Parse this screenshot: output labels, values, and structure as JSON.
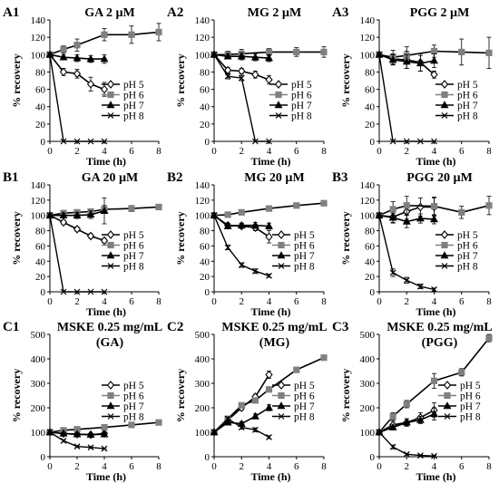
{
  "figure": {
    "legend_labels": [
      "pH 5",
      "pH 6",
      "pH 7",
      "pH 8"
    ],
    "series_style": [
      {
        "marker": "diamond-open",
        "color": "#000000"
      },
      {
        "marker": "square",
        "color": "#808080"
      },
      {
        "marker": "triangle",
        "color": "#000000"
      },
      {
        "marker": "x",
        "color": "#000000"
      }
    ]
  },
  "chart_data": [
    {
      "panel_id": "A1",
      "title": "GA 2 µM",
      "type": "line",
      "xlabel": "Time (h)",
      "ylabel": "% recovery",
      "xlim": [
        0,
        8
      ],
      "xticks": [
        0,
        2,
        4,
        6,
        8
      ],
      "ylim": [
        0,
        140
      ],
      "yticks": [
        0,
        20,
        40,
        60,
        80,
        100,
        120,
        140
      ],
      "legend": "right",
      "series": [
        {
          "name": "pH 5",
          "x": [
            0,
            1,
            2,
            3,
            4
          ],
          "y": [
            100,
            80,
            78,
            66,
            60
          ],
          "err": [
            0,
            4,
            5,
            8,
            8
          ]
        },
        {
          "name": "pH 6",
          "x": [
            0,
            1,
            2,
            4,
            6,
            8
          ],
          "y": [
            100,
            106,
            111,
            123,
            123,
            126
          ],
          "err": [
            0,
            4,
            7,
            7,
            10,
            10
          ]
        },
        {
          "name": "pH 7",
          "x": [
            0,
            1,
            2,
            3,
            4
          ],
          "y": [
            100,
            97,
            96,
            95,
            95
          ],
          "err": [
            0,
            3,
            4,
            4,
            5
          ]
        },
        {
          "name": "pH 8",
          "x": [
            0,
            1,
            2,
            3,
            4
          ],
          "y": [
            100,
            0,
            0,
            0,
            0
          ],
          "err": [
            0,
            0,
            0,
            0,
            0
          ]
        }
      ]
    },
    {
      "panel_id": "A2",
      "title": "MG 2 µM",
      "type": "line",
      "xlabel": "Time (h)",
      "ylabel": "% recovery",
      "xlim": [
        0,
        8
      ],
      "xticks": [
        0,
        2,
        4,
        6,
        8
      ],
      "ylim": [
        0,
        140
      ],
      "yticks": [
        0,
        20,
        40,
        60,
        80,
        100,
        120,
        140
      ],
      "legend": "right",
      "series": [
        {
          "name": "pH 5",
          "x": [
            0,
            1,
            2,
            3,
            4
          ],
          "y": [
            100,
            82,
            81,
            77,
            71
          ],
          "err": [
            0,
            3,
            3,
            4,
            5
          ]
        },
        {
          "name": "pH 6",
          "x": [
            0,
            1,
            2,
            4,
            6,
            8
          ],
          "y": [
            100,
            100,
            101,
            103,
            103,
            103
          ],
          "err": [
            0,
            4,
            5,
            4,
            5,
            6
          ]
        },
        {
          "name": "pH 7",
          "x": [
            0,
            1,
            2,
            3,
            4
          ],
          "y": [
            100,
            98,
            98,
            97,
            96
          ],
          "err": [
            0,
            3,
            4,
            4,
            4
          ]
        },
        {
          "name": "pH 8",
          "x": [
            0,
            1,
            2,
            3,
            4
          ],
          "y": [
            100,
            75,
            73,
            0,
            0
          ],
          "err": [
            0,
            3,
            3,
            0,
            0
          ]
        }
      ]
    },
    {
      "panel_id": "A3",
      "title": "PGG 2 µM",
      "type": "line",
      "xlabel": "Time (h)",
      "ylabel": "% recovery",
      "xlim": [
        0,
        8
      ],
      "xticks": [
        0,
        2,
        4,
        6,
        8
      ],
      "ylim": [
        0,
        140
      ],
      "yticks": [
        0,
        20,
        40,
        60,
        80,
        100,
        120,
        140
      ],
      "legend": "right",
      "series": [
        {
          "name": "pH 5",
          "x": [
            0,
            1,
            2,
            3,
            4
          ],
          "y": [
            100,
            95,
            94,
            91,
            77
          ],
          "err": [
            0,
            6,
            10,
            10,
            4
          ]
        },
        {
          "name": "pH 6",
          "x": [
            0,
            1,
            2,
            4,
            6,
            8
          ],
          "y": [
            100,
            97,
            99,
            104,
            103,
            102
          ],
          "err": [
            0,
            8,
            10,
            7,
            15,
            18
          ]
        },
        {
          "name": "pH 7",
          "x": [
            0,
            1,
            2,
            3,
            4
          ],
          "y": [
            100,
            94,
            92,
            90,
            93
          ],
          "err": [
            0,
            6,
            8,
            9,
            8
          ]
        },
        {
          "name": "pH 8",
          "x": [
            0,
            1,
            2,
            3,
            4
          ],
          "y": [
            100,
            0,
            0,
            0,
            0
          ],
          "err": [
            0,
            0,
            0,
            0,
            0
          ]
        }
      ]
    },
    {
      "panel_id": "B1",
      "title": "GA 20 µM",
      "type": "line",
      "xlabel": "Time (h)",
      "ylabel": "% recovery",
      "xlim": [
        0,
        8
      ],
      "xticks": [
        0,
        2,
        4,
        6,
        8
      ],
      "ylim": [
        0,
        140
      ],
      "yticks": [
        0,
        20,
        40,
        60,
        80,
        100,
        120,
        140
      ],
      "legend": "right",
      "series": [
        {
          "name": "pH 5",
          "x": [
            0,
            1,
            2,
            3,
            4
          ],
          "y": [
            100,
            91,
            82,
            73,
            67
          ],
          "err": [
            0,
            3,
            3,
            3,
            3
          ]
        },
        {
          "name": "pH 6",
          "x": [
            0,
            1,
            2,
            3,
            4,
            6,
            8
          ],
          "y": [
            100,
            103,
            104,
            105,
            108,
            109,
            111
          ],
          "err": [
            0,
            3,
            3,
            3,
            5,
            4,
            3
          ]
        },
        {
          "name": "pH 7",
          "x": [
            0,
            1,
            2,
            3,
            4
          ],
          "y": [
            100,
            100,
            100,
            101,
            106
          ],
          "err": [
            0,
            3,
            4,
            5,
            17
          ]
        },
        {
          "name": "pH 8",
          "x": [
            0,
            1,
            2,
            3,
            4
          ],
          "y": [
            100,
            0,
            0,
            0,
            0
          ],
          "err": [
            0,
            0,
            0,
            0,
            0
          ]
        }
      ]
    },
    {
      "panel_id": "B2",
      "title": "MG 20 µM",
      "type": "line",
      "xlabel": "Time (h)",
      "ylabel": "% recovery",
      "xlim": [
        0,
        8
      ],
      "xticks": [
        0,
        2,
        4,
        6,
        8
      ],
      "ylim": [
        0,
        140
      ],
      "yticks": [
        0,
        20,
        40,
        60,
        80,
        100,
        120,
        140
      ],
      "legend": "right",
      "series": [
        {
          "name": "pH 5",
          "x": [
            0,
            1,
            2,
            3,
            4
          ],
          "y": [
            100,
            87,
            86,
            84,
            72
          ],
          "err": [
            0,
            3,
            3,
            4,
            8
          ]
        },
        {
          "name": "pH 6",
          "x": [
            0,
            1,
            2,
            4,
            6,
            8
          ],
          "y": [
            100,
            101,
            104,
            109,
            113,
            116
          ],
          "err": [
            0,
            3,
            3,
            3,
            3,
            3
          ]
        },
        {
          "name": "pH 7",
          "x": [
            0,
            1,
            2,
            3,
            4
          ],
          "y": [
            100,
            86,
            87,
            87,
            86
          ],
          "err": [
            0,
            3,
            3,
            4,
            4
          ]
        },
        {
          "name": "pH 8",
          "x": [
            0,
            1,
            2,
            3,
            4
          ],
          "y": [
            100,
            58,
            35,
            27,
            21
          ],
          "err": [
            0,
            3,
            3,
            3,
            2
          ]
        }
      ]
    },
    {
      "panel_id": "B3",
      "title": "PGG 20 µM",
      "type": "line",
      "xlabel": "Time (h)",
      "ylabel": "% recovery",
      "xlim": [
        0,
        8
      ],
      "xticks": [
        0,
        2,
        4,
        6,
        8
      ],
      "ylim": [
        0,
        140
      ],
      "yticks": [
        0,
        20,
        40,
        60,
        80,
        100,
        120,
        140
      ],
      "legend": "right",
      "series": [
        {
          "name": "pH 5",
          "x": [
            0,
            1,
            2,
            3,
            4
          ],
          "y": [
            100,
            98,
            105,
            111,
            111
          ],
          "err": [
            0,
            8,
            10,
            12,
            12
          ]
        },
        {
          "name": "pH 6",
          "x": [
            0,
            1,
            2,
            4,
            6,
            8
          ],
          "y": [
            100,
            108,
            113,
            112,
            104,
            113
          ],
          "err": [
            0,
            10,
            12,
            12,
            8,
            12
          ]
        },
        {
          "name": "pH 7",
          "x": [
            0,
            1,
            2,
            3,
            4
          ],
          "y": [
            100,
            97,
            92,
            96,
            95
          ],
          "err": [
            0,
            6,
            8,
            6,
            6
          ]
        },
        {
          "name": "pH 8",
          "x": [
            0,
            1,
            2,
            3,
            4
          ],
          "y": [
            100,
            25,
            15,
            7,
            3
          ],
          "err": [
            0,
            5,
            4,
            3,
            2
          ]
        }
      ]
    },
    {
      "panel_id": "C1",
      "title": "MSKE 0.25 mg/mL (GA)",
      "title_lines": [
        "MSKE 0.25 mg/mL",
        "(GA)"
      ],
      "type": "line",
      "xlabel": "Time (h)",
      "ylabel": "% recovery",
      "xlim": [
        0,
        8
      ],
      "xticks": [
        0,
        2,
        4,
        6,
        8
      ],
      "ylim": [
        0,
        500
      ],
      "yticks": [
        0,
        100,
        200,
        300,
        400,
        500
      ],
      "legend": "right",
      "series": [
        {
          "name": "pH 5",
          "x": [
            0,
            1,
            2,
            3,
            4
          ],
          "y": [
            100,
            95,
            92,
            90,
            95
          ],
          "err": [
            0,
            5,
            5,
            5,
            5
          ]
        },
        {
          "name": "pH 6",
          "x": [
            0,
            1,
            2,
            4,
            6,
            8
          ],
          "y": [
            100,
            108,
            112,
            120,
            130,
            140
          ],
          "err": [
            0,
            5,
            5,
            5,
            5,
            5
          ]
        },
        {
          "name": "pH 7",
          "x": [
            0,
            1,
            2,
            3,
            4
          ],
          "y": [
            100,
            95,
            92,
            90,
            92
          ],
          "err": [
            0,
            5,
            5,
            5,
            5
          ]
        },
        {
          "name": "pH 8",
          "x": [
            0,
            1,
            2,
            3,
            4
          ],
          "y": [
            100,
            65,
            42,
            38,
            33
          ],
          "err": [
            0,
            5,
            4,
            4,
            3
          ]
        }
      ]
    },
    {
      "panel_id": "C2",
      "title": "MSKE 0.25 mg/mL (MG)",
      "title_lines": [
        "MSKE 0.25 mg/mL",
        "(MG)"
      ],
      "type": "line",
      "xlabel": "Time (h)",
      "ylabel": "% recovery",
      "xlim": [
        0,
        8
      ],
      "xticks": [
        0,
        2,
        4,
        6,
        8
      ],
      "ylim": [
        0,
        500
      ],
      "yticks": [
        0,
        100,
        200,
        300,
        400,
        500
      ],
      "legend": "right",
      "series": [
        {
          "name": "pH 5",
          "x": [
            0,
            1,
            2,
            3,
            4
          ],
          "y": [
            100,
            150,
            200,
            245,
            335
          ],
          "err": [
            0,
            8,
            8,
            10,
            15
          ]
        },
        {
          "name": "pH 6",
          "x": [
            0,
            1,
            2,
            3,
            4,
            6,
            8
          ],
          "y": [
            100,
            155,
            210,
            230,
            275,
            355,
            405
          ],
          "err": [
            0,
            8,
            8,
            10,
            10,
            10,
            10
          ]
        },
        {
          "name": "pH 7",
          "x": [
            0,
            1,
            2,
            3,
            4
          ],
          "y": [
            100,
            140,
            135,
            165,
            200
          ],
          "err": [
            0,
            8,
            8,
            10,
            12
          ]
        },
        {
          "name": "pH 8",
          "x": [
            0,
            1,
            2,
            3,
            4
          ],
          "y": [
            100,
            155,
            120,
            110,
            80
          ],
          "err": [
            0,
            8,
            8,
            8,
            6
          ]
        }
      ]
    },
    {
      "panel_id": "C3",
      "title": "MSKE 0.25 mg/mL (PGG)",
      "title_lines": [
        "MSKE 0.25 mg/mL",
        "(PGG)"
      ],
      "type": "line",
      "xlabel": "Time (h)",
      "ylabel": "% recovery",
      "xlim": [
        0,
        8
      ],
      "xticks": [
        0,
        2,
        4,
        6,
        8
      ],
      "ylim": [
        0,
        500
      ],
      "yticks": [
        0,
        100,
        200,
        300,
        400,
        500
      ],
      "legend": "right",
      "series": [
        {
          "name": "pH 5",
          "x": [
            0,
            1,
            2,
            3,
            4
          ],
          "y": [
            100,
            130,
            140,
            160,
            190
          ],
          "err": [
            0,
            15,
            15,
            20,
            30
          ]
        },
        {
          "name": "pH 6",
          "x": [
            0,
            1,
            2,
            4,
            6,
            8
          ],
          "y": [
            100,
            165,
            215,
            310,
            345,
            485
          ],
          "err": [
            0,
            15,
            15,
            30,
            15,
            15
          ]
        },
        {
          "name": "pH 7",
          "x": [
            0,
            1,
            2,
            3,
            4
          ],
          "y": [
            100,
            120,
            140,
            150,
            175
          ],
          "err": [
            0,
            10,
            15,
            15,
            25
          ]
        },
        {
          "name": "pH 8",
          "x": [
            0,
            1,
            2,
            3,
            4
          ],
          "y": [
            100,
            40,
            10,
            5,
            3
          ],
          "err": [
            0,
            8,
            4,
            3,
            2
          ]
        }
      ]
    }
  ]
}
